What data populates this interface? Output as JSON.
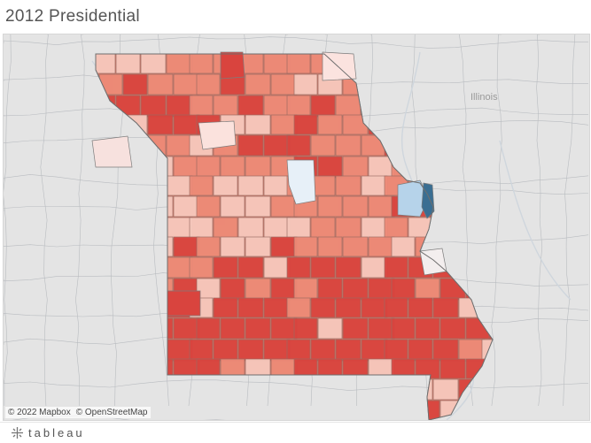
{
  "title": "2012 Presidential",
  "map": {
    "basemap": "light-gray",
    "state": "Missouri",
    "neighbor_label": "Illinois",
    "color_scale": {
      "strong_rep": "#d9443e",
      "mid_rep": "#ec8a76",
      "lean_rep": "#f6c8bc",
      "even": "#f3eeee",
      "lean_dem": "#b6d3ea",
      "strong_dem": "#3a6e92"
    }
  },
  "attribution": {
    "mapbox": "© 2022 Mapbox",
    "osm": "© OpenStreetMap"
  },
  "footer": {
    "brand": "tableau",
    "brand_icon": "tableau-logo-icon"
  }
}
